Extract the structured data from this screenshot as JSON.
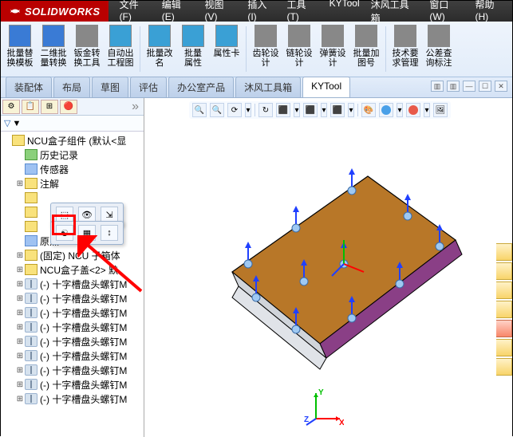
{
  "app": {
    "brand": "SOLIDWORKS",
    "brand_accent": "#b90000"
  },
  "menu": {
    "items": [
      "文件(F)",
      "编辑(E)",
      "视图(V)",
      "插入(I)",
      "工具(T)",
      "KYTool",
      "沐风工具箱",
      "窗口(W)",
      "帮助(H)"
    ]
  },
  "ribbon": {
    "buttons": [
      {
        "label": "批量替\n换模板",
        "color": "#3a7bd5"
      },
      {
        "label": "二维批\n量转换",
        "color": "#3a7bd5"
      },
      {
        "label": "钣金转\n换工具",
        "color": "#888"
      },
      {
        "label": "自动出\n工程图",
        "color": "#3aa0d5"
      },
      {
        "label": "批量改\n名",
        "color": "#3aa0d5"
      },
      {
        "label": "批量\n属性",
        "color": "#3aa0d5"
      },
      {
        "label": "属性卡",
        "color": "#3aa0d5"
      },
      {
        "label": "齿轮设\n计",
        "color": "#888"
      },
      {
        "label": "链轮设\n计",
        "color": "#888"
      },
      {
        "label": "弹簧设\n计",
        "color": "#888"
      },
      {
        "label": "批量加\n图号",
        "color": "#888"
      },
      {
        "label": "技术要\n求管理",
        "color": "#888"
      },
      {
        "label": "公差查\n询标注",
        "color": "#888"
      }
    ]
  },
  "doctabs": {
    "tabs": [
      "装配体",
      "布局",
      "草图",
      "评估",
      "办公室产品",
      "沐风工具箱",
      "KYTool"
    ],
    "active_index": 6
  },
  "left_panel": {
    "tab_icons": [
      "⚙",
      "📋",
      "⊞",
      "🔴"
    ],
    "filter_label": "▼",
    "root": "NCU盒子组件  (默认<显",
    "items": [
      {
        "indent": 1,
        "icon": "green",
        "label": "历史记录",
        "exp": ""
      },
      {
        "indent": 1,
        "icon": "blue",
        "label": "传感器",
        "exp": ""
      },
      {
        "indent": 1,
        "icon": "yellow",
        "label": "注解",
        "exp": "+"
      },
      {
        "indent": 1,
        "icon": "yellow",
        "label": "",
        "exp": "",
        "popup": true
      },
      {
        "indent": 1,
        "icon": "yellow",
        "label": "",
        "exp": ""
      },
      {
        "indent": 1,
        "icon": "yellow",
        "label": "",
        "exp": ""
      },
      {
        "indent": 1,
        "icon": "blue",
        "label": "原点",
        "exp": ""
      },
      {
        "indent": 1,
        "icon": "yellow",
        "label": "(固定) NCU    子箱体",
        "exp": "+"
      },
      {
        "indent": 1,
        "icon": "yellow",
        "label": "NCU盒子盖<2>  默",
        "exp": "+"
      },
      {
        "indent": 1,
        "icon": "screw",
        "label": "(-) 十字槽盘头螺钉M",
        "exp": "+"
      },
      {
        "indent": 1,
        "icon": "screw",
        "label": "(-) 十字槽盘头螺钉M",
        "exp": "+"
      },
      {
        "indent": 1,
        "icon": "screw",
        "label": "(-) 十字槽盘头螺钉M",
        "exp": "+"
      },
      {
        "indent": 1,
        "icon": "screw",
        "label": "(-) 十字槽盘头螺钉M",
        "exp": "+"
      },
      {
        "indent": 1,
        "icon": "screw",
        "label": "(-) 十字槽盘头螺钉M",
        "exp": "+"
      },
      {
        "indent": 1,
        "icon": "screw",
        "label": "(-) 十字槽盘头螺钉M",
        "exp": "+"
      },
      {
        "indent": 1,
        "icon": "screw",
        "label": "(-) 十字槽盘头螺钉M",
        "exp": "+"
      },
      {
        "indent": 1,
        "icon": "screw",
        "label": "(-) 十字槽盘头螺钉M",
        "exp": "+"
      },
      {
        "indent": 1,
        "icon": "screw",
        "label": "(-) 十字槽盘头螺钉M",
        "exp": "+"
      }
    ]
  },
  "viewport": {
    "background": "#ffffff",
    "plate": {
      "top_fill": "#b87728",
      "side_fill": "#8a3f86",
      "edge": "#000000",
      "points": [
        {
          "x": 0.08,
          "y": 0.52
        },
        {
          "x": 0.22,
          "y": 0.32
        },
        {
          "x": 0.38,
          "y": 0.18
        },
        {
          "x": 0.55,
          "y": 0.1
        },
        {
          "x": 0.7,
          "y": 0.18
        },
        {
          "x": 0.86,
          "y": 0.3
        },
        {
          "x": 0.94,
          "y": 0.44
        },
        {
          "x": 0.78,
          "y": 0.62
        },
        {
          "x": 0.6,
          "y": 0.78
        },
        {
          "x": 0.42,
          "y": 0.9
        },
        {
          "x": 0.24,
          "y": 0.74
        }
      ],
      "arrow_color": "#2040ff",
      "node_fill": "#9fc9f2"
    },
    "toolbar_icons": [
      "🔍",
      "🔍",
      "⟳",
      "↻",
      "⬛",
      "⬛",
      "⬛",
      "🎨",
      "🔵",
      "🔴",
      "🖼"
    ],
    "right_icons": 7,
    "triad": {
      "x": "X",
      "y": "Y",
      "z": "Z",
      "x_color": "#ff0000",
      "y_color": "#00c000",
      "z_color": "#2040ff"
    }
  },
  "annotation": {
    "highlight_color": "#ff0000"
  }
}
